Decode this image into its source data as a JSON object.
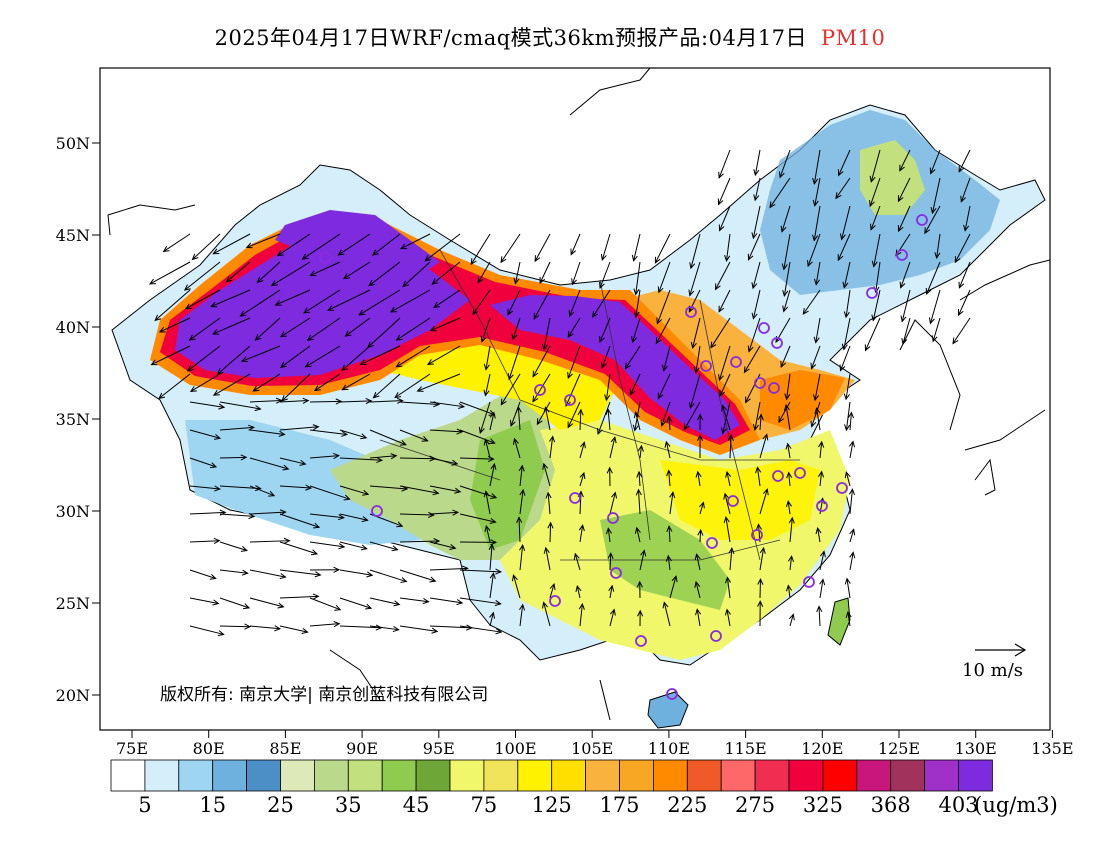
{
  "title": {
    "prefix": "2025年04月17日WRF/cmaq模式36km预报产品:04月17日",
    "variable": "PM10"
  },
  "map": {
    "lat_labels": [
      "50N",
      "45N",
      "40N",
      "35N",
      "30N",
      "25N",
      "20N"
    ],
    "lon_labels": [
      "75E",
      "80E",
      "85E",
      "90E",
      "95E",
      "100E",
      "105E",
      "110E",
      "115E",
      "120E",
      "125E",
      "130E",
      "135E"
    ],
    "copyright": "版权所有: 南京大学| 南京创蓝科技有限公司",
    "wind_reference": "10 m/s"
  },
  "colorbar": {
    "colors": [
      "#ffffff",
      "#d4eefa",
      "#9ed6f2",
      "#6fb1de",
      "#4b8fc6",
      "#dde9b6",
      "#bad98a",
      "#c3e07e",
      "#8fcb4e",
      "#6ea737",
      "#f0f76a",
      "#f2e45a",
      "#fff200",
      "#ffdf00",
      "#f9b23e",
      "#f7a724",
      "#ff8a00",
      "#f05a28",
      "#ff6868",
      "#f02e52",
      "#f0003c",
      "#ff0000",
      "#c8167c",
      "#a0325c",
      "#9f30c8",
      "#7e2be0"
    ],
    "tick_labels": [
      "5",
      "15",
      "25",
      "35",
      "45",
      "75",
      "125",
      "175",
      "225",
      "275",
      "325",
      "368",
      "403"
    ],
    "unit": "(ug/m3)"
  }
}
